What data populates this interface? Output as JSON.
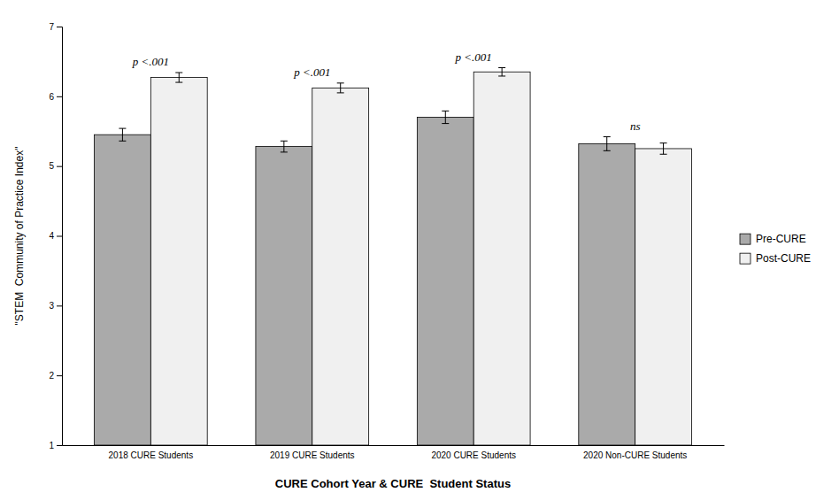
{
  "chart_data": {
    "type": "bar",
    "categories": [
      "2018 CURE Students",
      "2019 CURE Students",
      "2020 CURE Students",
      "2020 Non-CURE Students"
    ],
    "series": [
      {
        "name": "Pre-CURE",
        "color": "#aaaaaa",
        "values": [
          5.45,
          5.28,
          5.7,
          5.32
        ],
        "errors": [
          0.09,
          0.08,
          0.09,
          0.1
        ]
      },
      {
        "name": "Post-CURE",
        "color": "#f0f0f0",
        "values": [
          6.27,
          6.12,
          6.35,
          5.25
        ],
        "errors": [
          0.07,
          0.07,
          0.06,
          0.08
        ]
      }
    ],
    "annotations": [
      "p <.001",
      "p <.001",
      "p <.001",
      "ns"
    ],
    "xlabel": "CURE Cohort Year & CURE  Student Status",
    "ylabel": "\"STEM  Community of Practice Index\"",
    "ylim": [
      1,
      7
    ],
    "yticks": [
      1,
      2,
      3,
      4,
      5,
      6,
      7
    ],
    "legend": "right"
  }
}
